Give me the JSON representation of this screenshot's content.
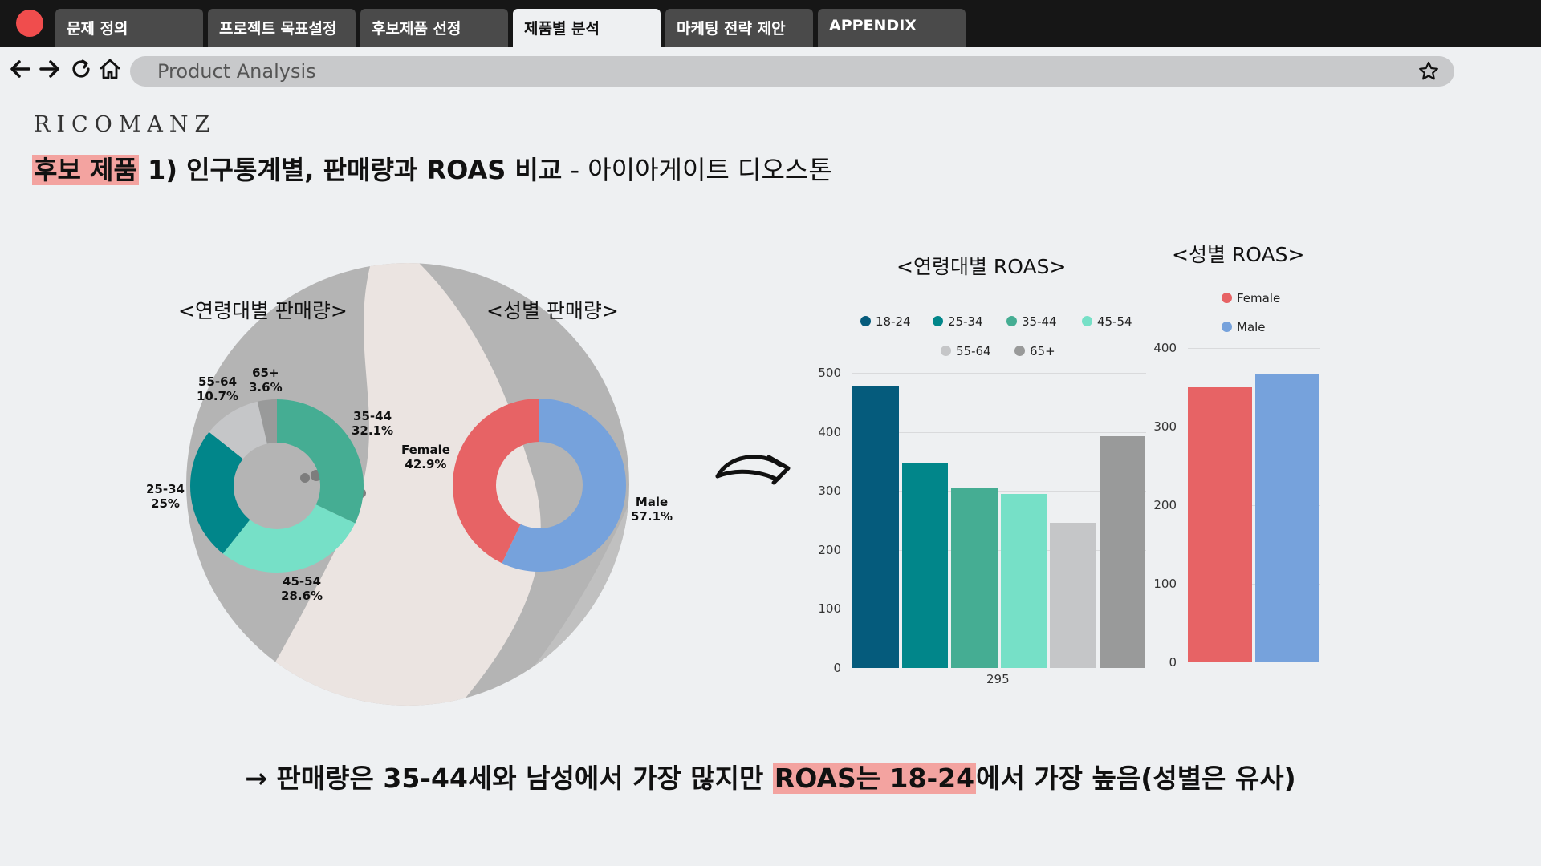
{
  "tabs": [
    {
      "label": "문제 정의",
      "active": false
    },
    {
      "label": "프로젝트 목표설정",
      "active": false
    },
    {
      "label": "후보제품 선정",
      "active": false
    },
    {
      "label": "제품별 분석",
      "active": true
    },
    {
      "label": "마케팅 전략 제안",
      "active": false
    },
    {
      "label": "APPENDIX",
      "active": false
    }
  ],
  "nav": {
    "icons": [
      "back-arrow-icon",
      "forward-arrow-icon",
      "refresh-icon",
      "home-icon"
    ],
    "address": "Product Analysis",
    "bookmark_icon": "star-icon"
  },
  "slide": {
    "logo": "RICOMANZ",
    "title_highlight": "후보 제품",
    "title_main": " 1) 인구통계별, 판매량과 ROAS 비교",
    "title_sub": " - 아이아게이트 디오스톤",
    "arrow_icon": "curved-arrow-icon",
    "conclusion_prefix": "→ 판매량은 35-44세와 남성에서 가장 많지만 ",
    "conclusion_highlight": "ROAS는 18-24",
    "conclusion_suffix": "에서 가장 높음(성별은 유사)"
  },
  "colors": {
    "18-24": "#055b7c",
    "25-34": "#01868a",
    "35-44": "#45ad93",
    "45-54": "#76e0c7",
    "55-64": "#c5c6c8",
    "65+": "#999a9a",
    "Female": "#e76365",
    "Male": "#76a2dc",
    "highlight": "#f3a3a0"
  },
  "chart_data": [
    {
      "type": "pie",
      "title": "<연령대별 판매량>",
      "categories": [
        "35-44",
        "45-54",
        "25-34",
        "55-64",
        "65+"
      ],
      "values": [
        32.1,
        28.6,
        25,
        10.7,
        3.6
      ],
      "labels": [
        {
          "cat": "35-44",
          "pct": "32.1%"
        },
        {
          "cat": "45-54",
          "pct": "28.6%"
        },
        {
          "cat": "25-34",
          "pct": "25%"
        },
        {
          "cat": "55-64",
          "pct": "10.7%"
        },
        {
          "cat": "65+",
          "pct": "3.6%"
        }
      ]
    },
    {
      "type": "pie",
      "title": "<성별 판매량>",
      "categories": [
        "Male",
        "Female"
      ],
      "values": [
        57.1,
        42.9
      ],
      "labels": [
        {
          "cat": "Male",
          "pct": "57.1%"
        },
        {
          "cat": "Female",
          "pct": "42.9%"
        }
      ]
    },
    {
      "type": "bar",
      "title": "<연령대별 ROAS>",
      "categories": [
        "295"
      ],
      "series": [
        {
          "name": "18-24",
          "values": [
            478
          ]
        },
        {
          "name": "25-34",
          "values": [
            347
          ]
        },
        {
          "name": "35-44",
          "values": [
            306
          ]
        },
        {
          "name": "45-54",
          "values": [
            295
          ]
        },
        {
          "name": "55-64",
          "values": [
            246
          ]
        },
        {
          "name": "65+",
          "values": [
            393
          ]
        }
      ],
      "ylim": [
        0,
        500
      ],
      "yticks": [
        0,
        100,
        200,
        300,
        400,
        500
      ],
      "legend": "top",
      "grid": true
    },
    {
      "type": "bar",
      "title": "<성별 ROAS>",
      "series": [
        {
          "name": "Female",
          "values": [
            350
          ]
        },
        {
          "name": "Male",
          "values": [
            367
          ]
        }
      ],
      "ylim": [
        0,
        400
      ],
      "yticks": [
        0,
        100,
        200,
        300,
        400
      ],
      "legend": "top",
      "grid": true
    }
  ]
}
